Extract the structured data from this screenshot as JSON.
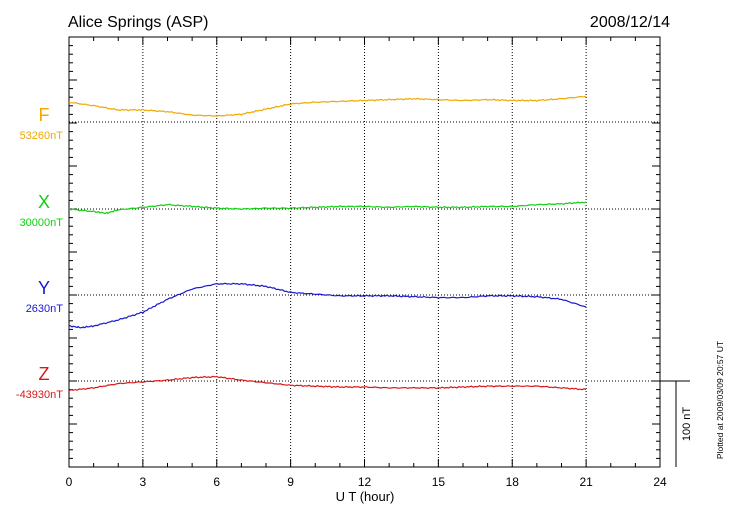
{
  "chart_data": {
    "type": "line",
    "title": "Alice Springs (ASP)",
    "date": "2008/12/14",
    "xlabel": "U T (hour)",
    "xlim": [
      0,
      24
    ],
    "xticks": [
      "0",
      "3",
      "6",
      "9",
      "12",
      "15",
      "18",
      "21",
      "24"
    ],
    "scale_bar_label": "100 nT",
    "scale_bar_nT": 100,
    "footer": "Plotted at 2009/03/09 20:57 UT",
    "grid": true,
    "series": [
      {
        "name": "F",
        "baseline_label": "53260nT",
        "baseline": 53260,
        "color": "#f0a800",
        "x": [
          0,
          1,
          2,
          3,
          4,
          5,
          6,
          7,
          8,
          9,
          10,
          11,
          12,
          13,
          14,
          15,
          16,
          17,
          18,
          19,
          20,
          21
        ],
        "values": [
          53283,
          53279,
          53274,
          53274,
          53272,
          53268,
          53267,
          53269,
          53275,
          53281,
          53283,
          53284,
          53285,
          53286,
          53287,
          53286,
          53285,
          53286,
          53285,
          53285,
          53287,
          53290
        ]
      },
      {
        "name": "X",
        "baseline_label": "30000nT",
        "baseline": 30000,
        "color": "#10d010",
        "x": [
          0,
          1,
          1.5,
          2,
          3,
          4,
          5,
          6,
          7,
          8,
          9,
          10,
          11,
          12,
          13,
          14,
          15,
          16,
          17,
          18,
          19,
          20,
          21
        ],
        "values": [
          30000,
          29997,
          29995,
          29999,
          30002,
          30005,
          30003,
          30001,
          30000,
          30001,
          30001,
          30002,
          30003,
          30003,
          30002,
          30003,
          30002,
          30002,
          30003,
          30003,
          30005,
          30006,
          30008
        ]
      },
      {
        "name": "Y",
        "baseline_label": "2630nT",
        "baseline": 2630,
        "color": "#1818d0",
        "x": [
          0,
          0.5,
          1,
          2,
          3,
          4,
          5,
          6,
          7,
          8,
          9,
          10,
          11,
          12,
          13,
          14,
          15,
          16,
          17,
          18,
          19,
          20,
          21
        ],
        "values": [
          2594,
          2592,
          2594,
          2601,
          2610,
          2625,
          2637,
          2643,
          2643,
          2640,
          2633,
          2631,
          2629,
          2629,
          2629,
          2628,
          2627,
          2627,
          2629,
          2629,
          2628,
          2625,
          2616
        ]
      },
      {
        "name": "Z",
        "baseline_label": "-43930nT",
        "baseline": -43930,
        "color": "#d81818",
        "x": [
          0,
          1,
          2,
          3,
          4,
          5,
          6,
          7,
          8,
          9,
          10,
          11,
          12,
          13,
          14,
          15,
          16,
          17,
          18,
          19,
          20,
          21
        ],
        "values": [
          -43941,
          -43938,
          -43933,
          -43931,
          -43929,
          -43926,
          -43925,
          -43929,
          -43932,
          -43935,
          -43936,
          -43937,
          -43937,
          -43938,
          -43938,
          -43938,
          -43937,
          -43936,
          -43936,
          -43936,
          -43938,
          -43940
        ]
      }
    ]
  }
}
